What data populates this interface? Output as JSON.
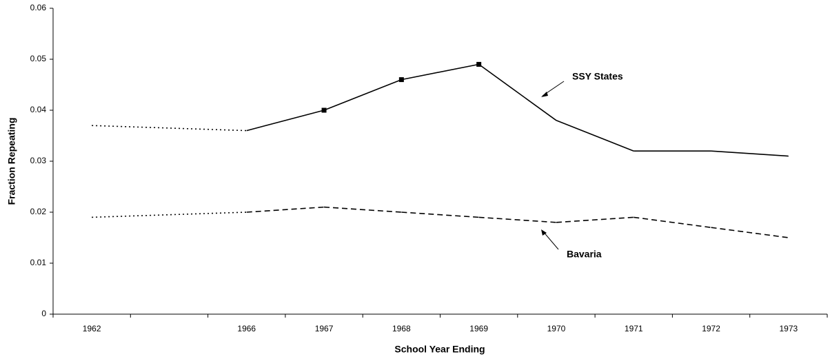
{
  "chart_data": {
    "type": "line",
    "x_label": "School Year Ending",
    "y_label": "Fraction Repeating",
    "categories": [
      "1962",
      null,
      "1966",
      "1967",
      "1968",
      "1969",
      "1970",
      "1971",
      "1972",
      "1973"
    ],
    "series": [
      {
        "name": "SSY States",
        "color": "#000000",
        "dash": "solid",
        "dotted_before": "1966",
        "markers_at": [
          "1967",
          "1968",
          "1969"
        ],
        "values": [
          0.037,
          null,
          0.036,
          0.04,
          0.046,
          0.049,
          0.038,
          0.032,
          0.032,
          0.031
        ]
      },
      {
        "name": "Bavaria",
        "color": "#000000",
        "dash": "dashed",
        "dotted_before": "1966",
        "markers_at": [],
        "values": [
          0.019,
          null,
          0.02,
          0.021,
          0.02,
          0.019,
          0.018,
          0.019,
          0.017,
          0.015
        ]
      }
    ],
    "ylim": [
      0,
      0.06
    ],
    "yticks": [
      0,
      0.01,
      0.02,
      0.03,
      0.04,
      0.05,
      0.06
    ],
    "grid": false
  }
}
